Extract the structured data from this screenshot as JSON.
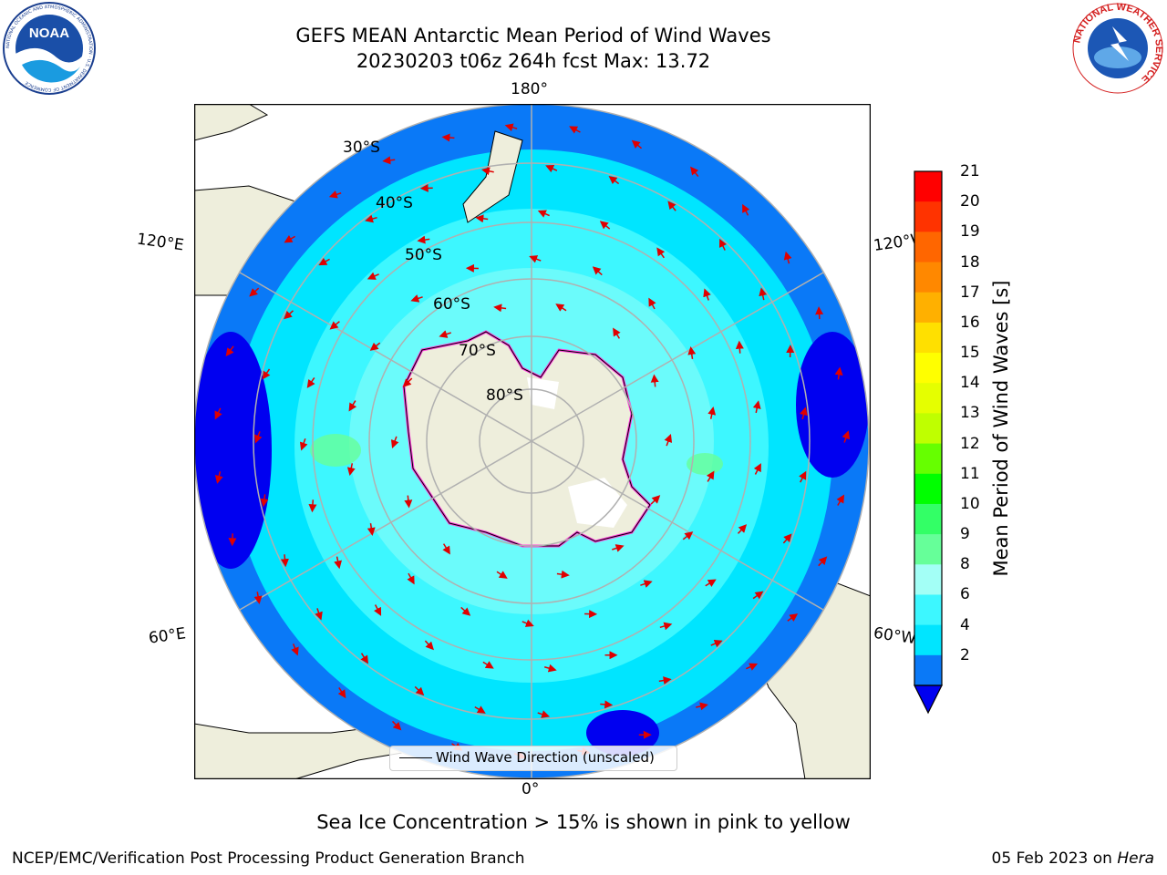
{
  "header": {
    "title_line1": "GEFS MEAN Antarctic Mean Period of Wind Waves",
    "title_line2": "20230203 t06z 264h fcst   Max: 13.72"
  },
  "logos": {
    "left": {
      "icon": "noaa-logo",
      "text": "NOAA",
      "ring_text": "NATIONAL OCEANIC AND ATMOSPHERIC ADMINISTRATION · U.S. DEPARTMENT OF COMMERCE"
    },
    "right": {
      "icon": "nws-logo",
      "ring_text": "NATIONAL WEATHER SERVICE"
    }
  },
  "map": {
    "projection": "south-polar-stereographic",
    "longitude_labels": {
      "top": "180°",
      "bottom": "0°",
      "left_upper": "120°E",
      "right_upper": "120°W",
      "left_lower": "60°E",
      "right_lower": "60°W"
    },
    "latitude_labels": [
      "30°S",
      "40°S",
      "50°S",
      "60°S",
      "70°S",
      "80°S"
    ],
    "legend": {
      "label": "Wind Wave Direction (unscaled)"
    },
    "colors": {
      "land": "#eeeedc",
      "ocean_2_4": "#0a79f7",
      "ocean_4_6": "#00e5ff",
      "ocean_6_8": "#3df7ff",
      "ocean_8_9": "#a3fff6",
      "ocean_lt_2": "#0000f0",
      "arrow": "#e00000",
      "ice_edge": "#ff3ddb",
      "graticule": "#b0b0b0"
    }
  },
  "colorbar": {
    "label": "Mean Period of Wind Waves [s]",
    "ticks": [
      "21",
      "20",
      "19",
      "18",
      "17",
      "16",
      "15",
      "14",
      "13",
      "12",
      "11",
      "10",
      "9",
      "8",
      "6",
      "4",
      "2"
    ],
    "colors": [
      "#ff0000",
      "#ff3300",
      "#ff6600",
      "#ff8800",
      "#ffb000",
      "#ffe000",
      "#ffff00",
      "#e5ff00",
      "#bfff00",
      "#66ff00",
      "#00ff00",
      "#33ff66",
      "#66ff99",
      "#a3fff6",
      "#3df7ff",
      "#00e5ff",
      "#0a79f7",
      "#0000f0"
    ]
  },
  "footer": {
    "note": "Sea Ice Concentration > 15% is shown in pink to yellow",
    "left": "NCEP/EMC/Verification Post Processing Product Generation Branch",
    "right_date": "05 Feb 2023 on ",
    "right_machine": "Hera"
  }
}
